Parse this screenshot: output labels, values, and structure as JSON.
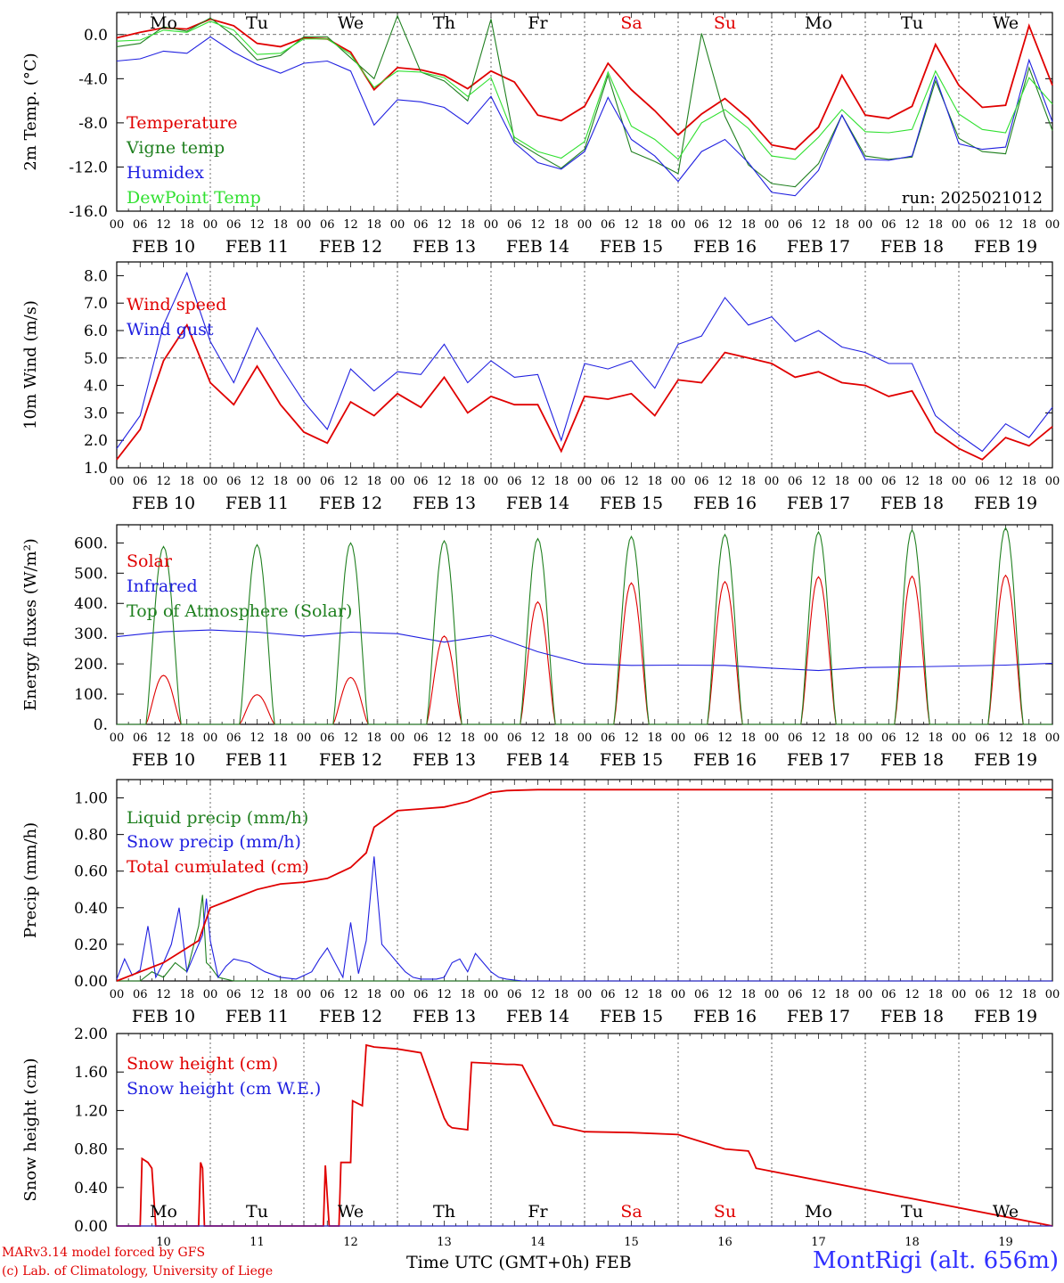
{
  "chart_data": [
    {
      "type": "line",
      "ylabel": "2m Temp. (°C)",
      "ylim": [
        -16,
        2
      ],
      "yticks": [
        "0.0",
        "-4.0",
        "-8.0",
        "-12.0",
        "-16.0"
      ],
      "reference_line": 0,
      "run_label": "run: 2025021012",
      "x_hours_every_6h": true,
      "series": [
        {
          "name": "Temperature",
          "color": "#e00000",
          "x": [
            0,
            6,
            12,
            18,
            24,
            30,
            36,
            42,
            48,
            54,
            60,
            66,
            72,
            78,
            84,
            90,
            96,
            102,
            108,
            114,
            120,
            126,
            132,
            138,
            144,
            150,
            156,
            162,
            168,
            174,
            180,
            186,
            192,
            198,
            204,
            210,
            216,
            222,
            228,
            234,
            240
          ],
          "values": [
            -0.3,
            0.2,
            0.6,
            0.5,
            1.4,
            0.8,
            -0.8,
            -1.1,
            -0.3,
            -0.4,
            -1.6,
            -5.0,
            -3.0,
            -3.2,
            -3.7,
            -4.9,
            -3.3,
            -4.3,
            -7.3,
            -7.8,
            -6.5,
            -2.6,
            -5.0,
            -6.9,
            -9.1,
            -7.2,
            -5.8,
            -7.6,
            -10.0,
            -10.4,
            -8.4,
            -3.7,
            -7.3,
            -7.6,
            -6.5,
            -0.9,
            -4.6,
            -6.6,
            -6.4,
            0.8,
            -4.6
          ]
        },
        {
          "name": "Vigne temp",
          "color": "#208020",
          "x": [
            0,
            6,
            12,
            18,
            24,
            30,
            36,
            42,
            48,
            54,
            60,
            66,
            72,
            78,
            84,
            90,
            96,
            102,
            108,
            114,
            120,
            126,
            132,
            138,
            144,
            150,
            156,
            162,
            168,
            174,
            180,
            186,
            192,
            198,
            204,
            210,
            216,
            222,
            228,
            234,
            240
          ],
          "values": [
            -1.1,
            -0.8,
            0.7,
            0.3,
            1.5,
            -0.1,
            -2.3,
            -1.9,
            -0.2,
            -0.2,
            -2.1,
            -4.0,
            1.7,
            -3.4,
            -4.2,
            -6.0,
            1.4,
            -9.6,
            -10.9,
            -12.1,
            -10.4,
            -3.7,
            -10.6,
            -11.5,
            -12.6,
            0.1,
            -7.4,
            -11.8,
            -13.5,
            -13.8,
            -11.7,
            -7.3,
            -11.0,
            -11.3,
            -11.1,
            -4.2,
            -9.4,
            -10.6,
            -10.8,
            -3.0,
            -8.7
          ]
        },
        {
          "name": "Humidex",
          "color": "#2020e0",
          "x": [
            0,
            6,
            12,
            18,
            24,
            30,
            36,
            42,
            48,
            54,
            60,
            66,
            72,
            78,
            84,
            90,
            96,
            102,
            108,
            114,
            120,
            126,
            132,
            138,
            144,
            150,
            156,
            162,
            168,
            174,
            180,
            186,
            192,
            198,
            204,
            210,
            216,
            222,
            228,
            234,
            240
          ],
          "values": [
            -2.4,
            -2.2,
            -1.5,
            -1.7,
            -0.2,
            -1.6,
            -2.7,
            -3.5,
            -2.6,
            -2.4,
            -3.3,
            -8.2,
            -5.9,
            -6.1,
            -6.6,
            -8.1,
            -5.6,
            -9.8,
            -11.6,
            -12.2,
            -10.6,
            -5.7,
            -9.5,
            -11.0,
            -13.3,
            -10.6,
            -9.5,
            -11.6,
            -14.3,
            -14.6,
            -12.3,
            -7.3,
            -11.3,
            -11.4,
            -11.0,
            -3.8,
            -9.9,
            -10.4,
            -10.2,
            -2.3,
            -7.9
          ]
        },
        {
          "name": "DewPoint Temp",
          "color": "#30e030",
          "x": [
            0,
            6,
            12,
            18,
            24,
            30,
            36,
            42,
            48,
            54,
            60,
            66,
            72,
            78,
            84,
            90,
            96,
            102,
            108,
            114,
            120,
            126,
            132,
            138,
            144,
            150,
            156,
            162,
            168,
            174,
            180,
            186,
            192,
            198,
            204,
            210,
            216,
            222,
            228,
            234,
            240
          ],
          "values": [
            -0.6,
            -0.5,
            0.4,
            0.2,
            1.2,
            0.4,
            -1.8,
            -1.7,
            -0.4,
            -0.4,
            -1.8,
            -4.8,
            -3.3,
            -3.4,
            -3.9,
            -5.6,
            -3.9,
            -9.3,
            -10.6,
            -11.2,
            -9.7,
            -3.4,
            -8.3,
            -9.5,
            -11.3,
            -8.0,
            -6.8,
            -8.5,
            -11.0,
            -11.3,
            -9.3,
            -6.8,
            -8.8,
            -8.9,
            -8.6,
            -3.3,
            -7.2,
            -8.6,
            -8.9,
            -3.9,
            -6.3
          ]
        }
      ]
    },
    {
      "type": "line",
      "ylabel": "10m Wind (m/s)",
      "ylim": [
        1,
        8.5
      ],
      "yticks": [
        "1.0",
        "2.0",
        "3.0",
        "4.0",
        "5.0",
        "6.0",
        "7.0",
        "8.0"
      ],
      "reference_line": 5,
      "series": [
        {
          "name": "Wind speed",
          "color": "#e00000",
          "x": [
            0,
            6,
            12,
            18,
            24,
            30,
            36,
            42,
            48,
            54,
            60,
            66,
            72,
            78,
            84,
            90,
            96,
            102,
            108,
            114,
            120,
            126,
            132,
            138,
            144,
            150,
            156,
            162,
            168,
            174,
            180,
            186,
            192,
            198,
            204,
            210,
            216,
            222,
            228,
            234,
            240
          ],
          "values": [
            1.3,
            2.4,
            4.9,
            6.2,
            4.1,
            3.3,
            4.7,
            3.3,
            2.3,
            1.9,
            3.4,
            2.9,
            3.7,
            3.2,
            4.3,
            3.0,
            3.6,
            3.3,
            3.3,
            1.6,
            3.6,
            3.5,
            3.7,
            2.9,
            4.2,
            4.1,
            5.2,
            5.0,
            4.8,
            4.3,
            4.5,
            4.1,
            4.0,
            3.6,
            3.8,
            2.3,
            1.7,
            1.3,
            2.1,
            1.8,
            2.5
          ]
        },
        {
          "name": "Wind gust",
          "color": "#2020e0",
          "x": [
            0,
            6,
            12,
            18,
            24,
            30,
            36,
            42,
            48,
            54,
            60,
            66,
            72,
            78,
            84,
            90,
            96,
            102,
            108,
            114,
            120,
            126,
            132,
            138,
            144,
            150,
            156,
            162,
            168,
            174,
            180,
            186,
            192,
            198,
            204,
            210,
            216,
            222,
            228,
            234,
            240
          ],
          "values": [
            1.7,
            2.9,
            6.2,
            8.1,
            5.6,
            4.1,
            6.1,
            4.7,
            3.4,
            2.4,
            4.6,
            3.8,
            4.5,
            4.4,
            5.5,
            4.1,
            4.9,
            4.3,
            4.4,
            2.0,
            4.8,
            4.6,
            4.9,
            3.9,
            5.5,
            5.8,
            7.2,
            6.2,
            6.5,
            5.6,
            6.0,
            5.4,
            5.2,
            4.8,
            4.8,
            2.9,
            2.2,
            1.6,
            2.6,
            2.1,
            3.2
          ]
        }
      ]
    },
    {
      "type": "line",
      "ylabel": "Energy fluxes (W/m²)",
      "ylim": [
        0,
        660
      ],
      "yticks": [
        "0.",
        "100.",
        "200.",
        "300.",
        "400.",
        "500.",
        "600."
      ],
      "series": [
        {
          "name": "Solar",
          "color": "#e00000",
          "day_peaks": [
            162,
            98,
            155,
            292,
            405,
            468,
            472,
            488,
            490,
            493
          ]
        },
        {
          "name": "Infrared",
          "color": "#2020e0",
          "x": [
            0,
            12,
            24,
            36,
            48,
            60,
            72,
            84,
            96,
            108,
            120,
            132,
            144,
            156,
            168,
            180,
            192,
            204,
            216,
            228,
            240
          ],
          "values": [
            290,
            306,
            312,
            305,
            292,
            305,
            300,
            272,
            295,
            240,
            200,
            195,
            196,
            195,
            186,
            178,
            188,
            190,
            193,
            196,
            202
          ]
        },
        {
          "name": "Top of Atmosphere (Solar)",
          "color": "#208020",
          "day_peaks": [
            588,
            594,
            600,
            607,
            614,
            621,
            628,
            636,
            643,
            650
          ]
        }
      ]
    },
    {
      "type": "line",
      "ylabel": "Precip (mm/h)",
      "ylim": [
        0,
        1.1
      ],
      "yticks": [
        "0.00",
        "0.20",
        "0.40",
        "0.60",
        "0.80",
        "1.00"
      ],
      "series": [
        {
          "name": "Liquid precip (mm/h)",
          "color": "#208020",
          "x": [
            0,
            6,
            9,
            12,
            15,
            18,
            21,
            22,
            23,
            24,
            26,
            30,
            48,
            72,
            96,
            240
          ],
          "values": [
            0,
            0,
            0.05,
            0.02,
            0.1,
            0.05,
            0.3,
            0.47,
            0.1,
            0.08,
            0.02,
            0,
            0,
            0,
            0,
            0
          ]
        },
        {
          "name": "Snow precip (mm/h)",
          "color": "#2020e0",
          "x": [
            0,
            2,
            4,
            6,
            8,
            10,
            12,
            14,
            16,
            18,
            20,
            22,
            23,
            24,
            26,
            28,
            30,
            34,
            38,
            42,
            46,
            50,
            52,
            54,
            56,
            58,
            60,
            62,
            64,
            66,
            68,
            70,
            72,
            74,
            76,
            78,
            80,
            82,
            84,
            86,
            88,
            90,
            92,
            94,
            96,
            98,
            100,
            104,
            120,
            168,
            240
          ],
          "values": [
            0.01,
            0.12,
            0.03,
            0.06,
            0.3,
            0.02,
            0.1,
            0.2,
            0.4,
            0.05,
            0.15,
            0.25,
            0.45,
            0.22,
            0.02,
            0.08,
            0.12,
            0.1,
            0.05,
            0.02,
            0.01,
            0.05,
            0.12,
            0.18,
            0.1,
            0.02,
            0.32,
            0.04,
            0.22,
            0.68,
            0.2,
            0.15,
            0.1,
            0.05,
            0.02,
            0.01,
            0.01,
            0.01,
            0.02,
            0.1,
            0.12,
            0.05,
            0.15,
            0.1,
            0.05,
            0.02,
            0.01,
            0,
            0,
            0,
            0
          ]
        },
        {
          "name": "Total cumulated (cm)",
          "color": "#e00000",
          "x": [
            0,
            6,
            12,
            18,
            21,
            24,
            30,
            36,
            42,
            48,
            54,
            60,
            64,
            66,
            70,
            72,
            78,
            84,
            90,
            96,
            100,
            108,
            120,
            144,
            168,
            192,
            216,
            240
          ],
          "values": [
            0,
            0.05,
            0.1,
            0.18,
            0.22,
            0.4,
            0.45,
            0.5,
            0.53,
            0.54,
            0.56,
            0.62,
            0.7,
            0.84,
            0.9,
            0.93,
            0.94,
            0.95,
            0.98,
            1.03,
            1.04,
            1.045,
            1.045,
            1.045,
            1.045,
            1.045,
            1.045,
            1.045
          ]
        }
      ]
    },
    {
      "type": "line",
      "ylabel": "Snow height (cm)",
      "ylim": [
        0,
        2.0
      ],
      "yticks": [
        "0.00",
        "0.40",
        "0.80",
        "1.20",
        "1.60",
        "2.00"
      ],
      "x_day_labels": [
        "10",
        "11",
        "12",
        "13",
        "14",
        "15",
        "16",
        "17",
        "18",
        "19"
      ],
      "series": [
        {
          "name": "Snow height (cm)",
          "color": "#e00000",
          "x": [
            0,
            6,
            6.5,
            8,
            9,
            10,
            21,
            21.5,
            22,
            22.5,
            48,
            53,
            53.5,
            54,
            54.5,
            57,
            57.5,
            60,
            60.5,
            63,
            64,
            65,
            66,
            72,
            78,
            84,
            85,
            86,
            90,
            91,
            96,
            100,
            102,
            104,
            112,
            120,
            132,
            144,
            156,
            162,
            163,
            164,
            240
          ],
          "values": [
            0,
            0,
            0.7,
            0.66,
            0.6,
            0,
            0,
            0.66,
            0.6,
            0,
            0,
            0,
            0.63,
            0.3,
            0,
            0,
            0.66,
            0.66,
            1.3,
            1.25,
            1.88,
            1.87,
            1.86,
            1.84,
            1.8,
            1.12,
            1.05,
            1.02,
            1.0,
            1.7,
            1.69,
            1.68,
            1.68,
            1.67,
            1.05,
            0.98,
            0.97,
            0.95,
            0.8,
            0.78,
            0.7,
            0.6,
            0
          ]
        },
        {
          "name": "Snow height (cm W.E.)",
          "color": "#2020e0",
          "x": [
            0,
            240
          ],
          "values": [
            0,
            0
          ]
        }
      ]
    }
  ],
  "x_axis": {
    "hour_labels": [
      "00",
      "06",
      "12",
      "18"
    ],
    "date_labels": [
      "FEB 10",
      "FEB 11",
      "FEB 12",
      "FEB 13",
      "FEB 14",
      "FEB 15",
      "FEB 16",
      "FEB 17",
      "FEB 18",
      "FEB 19"
    ],
    "weekdays": [
      "Mo",
      "Tu",
      "We",
      "Th",
      "Fr",
      "Sa",
      "Su",
      "Mo",
      "Tu",
      "We"
    ],
    "weekend_color": "#e00000",
    "weekday_color": "#000000",
    "title": "Time UTC (GMT+0h)",
    "month": "FEB"
  },
  "footer": {
    "model_line": "MARv3.14 model forced by GFS",
    "credit_line": "(c) Lab. of Climatology, University of Liege",
    "station": "MontRigi (alt. 656m)"
  }
}
